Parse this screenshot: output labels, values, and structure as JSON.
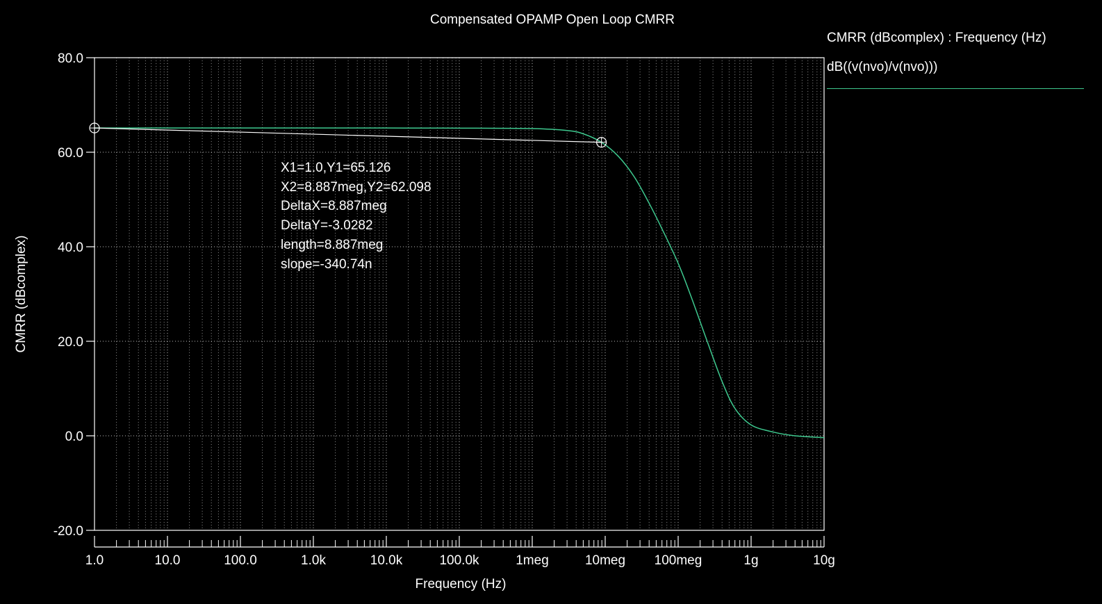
{
  "chart_data": {
    "type": "line",
    "title": "Compensated OPAMP Open Loop CMRR",
    "xlabel": "Frequency (Hz)",
    "ylabel": "CMRR (dBcomplex)",
    "x_scale": "log",
    "xlim": [
      1,
      10000000000
    ],
    "ylim": [
      -20,
      80
    ],
    "grid": true,
    "x_ticks": [
      {
        "value": 1,
        "label": "1.0"
      },
      {
        "value": 10,
        "label": "10.0"
      },
      {
        "value": 100,
        "label": "100.0"
      },
      {
        "value": 1000,
        "label": "1.0k"
      },
      {
        "value": 10000,
        "label": "10.0k"
      },
      {
        "value": 100000,
        "label": "100.0k"
      },
      {
        "value": 1000000,
        "label": "1meg"
      },
      {
        "value": 10000000,
        "label": "10meg"
      },
      {
        "value": 100000000,
        "label": "100meg"
      },
      {
        "value": 1000000000,
        "label": "1g"
      },
      {
        "value": 10000000000,
        "label": "10g"
      }
    ],
    "y_ticks": [
      {
        "value": 80,
        "label": "80.0"
      },
      {
        "value": 60,
        "label": "60.0"
      },
      {
        "value": 40,
        "label": "40.0"
      },
      {
        "value": 20,
        "label": "20.0"
      },
      {
        "value": 0,
        "label": "0.0"
      },
      {
        "value": -20,
        "label": "-20.0"
      }
    ],
    "legend": {
      "placement": "top-right",
      "title": "CMRR (dBcomplex) : Frequency (Hz)",
      "entries": [
        {
          "label": "dB((v(nvo)/v(nvo)))",
          "color": "#3ec98f"
        }
      ]
    },
    "series": [
      {
        "name": "dB((v(nvo)/v(nvo)))",
        "color": "#3ec98f",
        "x": [
          1,
          10,
          100,
          1000,
          10000,
          100000,
          1000000,
          3000000,
          5000000,
          8887000,
          15000000,
          25000000,
          40000000,
          60000000,
          100000000,
          150000000,
          250000000,
          400000000,
          600000000,
          1000000000,
          2000000000,
          4000000000,
          10000000000
        ],
        "y": [
          65.13,
          65.13,
          65.13,
          65.12,
          65.12,
          65.1,
          65.0,
          64.6,
          63.9,
          62.1,
          59.2,
          54.8,
          49.2,
          43.8,
          36.5,
          29.5,
          20.0,
          11.5,
          5.8,
          2.3,
          0.8,
          0.0,
          -0.4
        ]
      }
    ],
    "cursors": [
      {
        "x": 1.0,
        "y": 65.126
      },
      {
        "x": 8887000,
        "y": 62.098
      }
    ],
    "annotations": [
      "X1=1.0,Y1=65.126",
      "X2=8.887meg,Y2=62.098",
      "DeltaX=8.887meg",
      "DeltaY=-3.0282",
      "length=8.887meg",
      "slope=-340.74n"
    ]
  }
}
